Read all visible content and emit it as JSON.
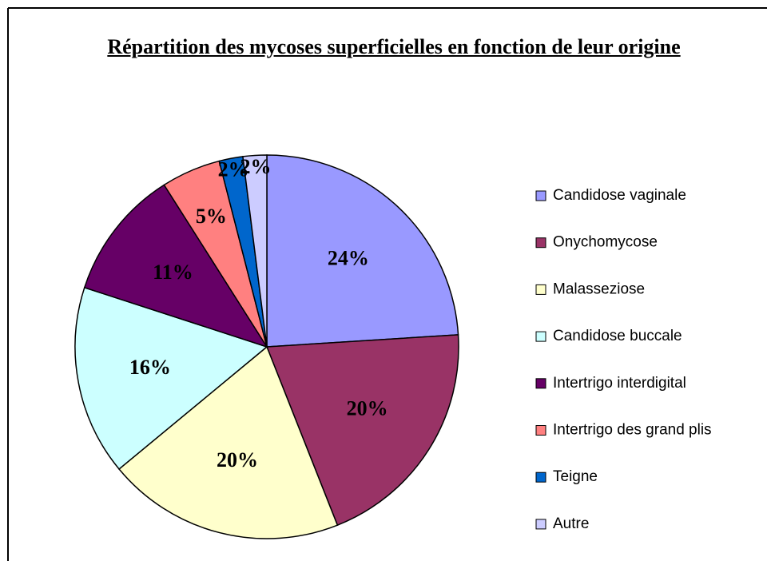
{
  "chart_data": {
    "type": "pie",
    "title": "Répartition des mycoses superficielles en fonction de leur origine",
    "categories": [
      "Candidose vaginale",
      "Onychomycose",
      "Malasseziose",
      "Candidose buccale",
      "Intertrigo interdigital",
      "Intertrigo des grand plis",
      "Teigne",
      "Autre"
    ],
    "values": [
      24,
      20,
      20,
      16,
      11,
      5,
      2,
      2
    ],
    "value_labels": [
      "24%",
      "20%",
      "20%",
      "16%",
      "11%",
      "5%",
      "2%",
      "2%"
    ],
    "colors": [
      "#9999ff",
      "#993366",
      "#ffffcc",
      "#ccffff",
      "#660066",
      "#ff8080",
      "#0066cc",
      "#ccccff"
    ],
    "legend": "right"
  }
}
